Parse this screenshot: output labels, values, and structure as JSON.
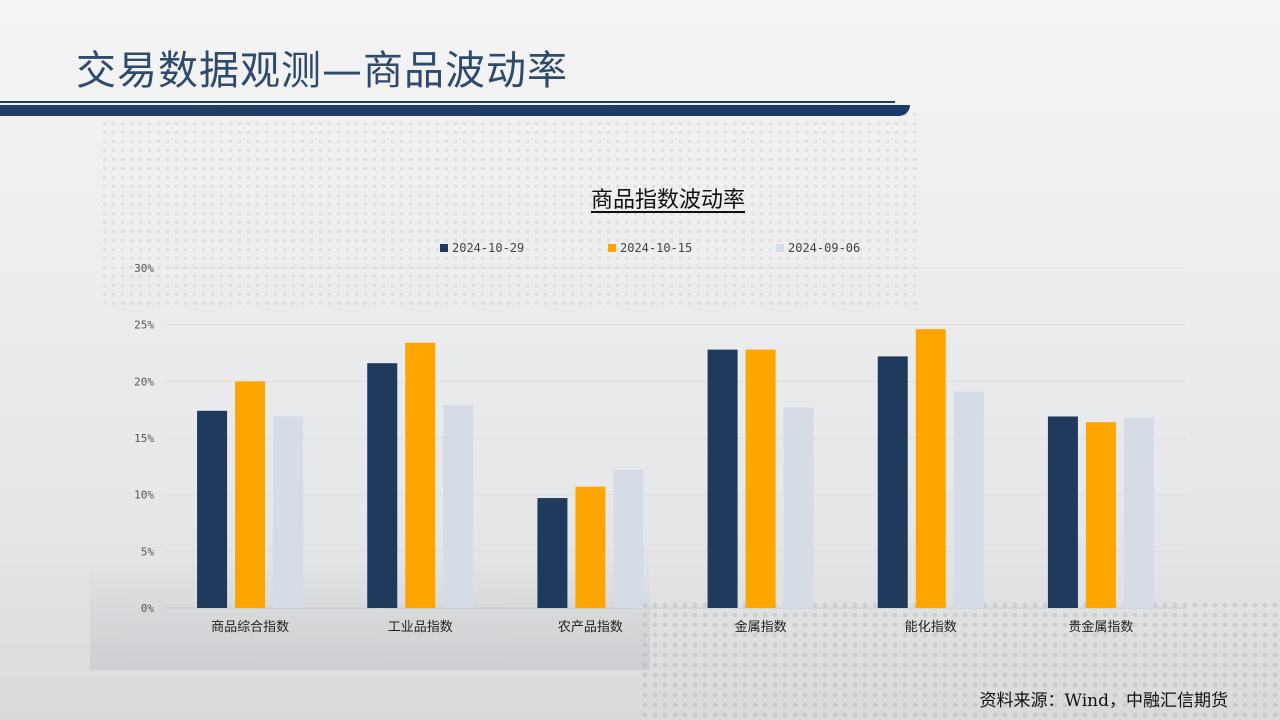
{
  "slide": {
    "title": "交易数据观测—商品波动率",
    "source": "资料来源：Wind，中融汇信期货"
  },
  "chart_data": {
    "type": "bar",
    "title": "商品指数波动率",
    "categories": [
      "商品综合指数",
      "工业品指数",
      "农产品指数",
      "金属指数",
      "能化指数",
      "贵金属指数"
    ],
    "series": [
      {
        "name": "2024-10-29",
        "color": "#1f3a5c",
        "values": [
          17.4,
          21.6,
          9.7,
          22.8,
          22.2,
          16.9
        ]
      },
      {
        "name": "2024-10-15",
        "color": "#ffa500",
        "values": [
          20.0,
          23.4,
          10.7,
          22.8,
          24.6,
          16.4
        ]
      },
      {
        "name": "2024-09-06",
        "color": "#d6dce5",
        "values": [
          16.9,
          17.9,
          12.2,
          17.7,
          19.1,
          16.8
        ]
      }
    ],
    "yticks": [
      "0%",
      "5%",
      "10%",
      "15%",
      "20%",
      "25%",
      "30%"
    ],
    "ylim": [
      0,
      30
    ],
    "grid": true,
    "legend_position": "top"
  }
}
